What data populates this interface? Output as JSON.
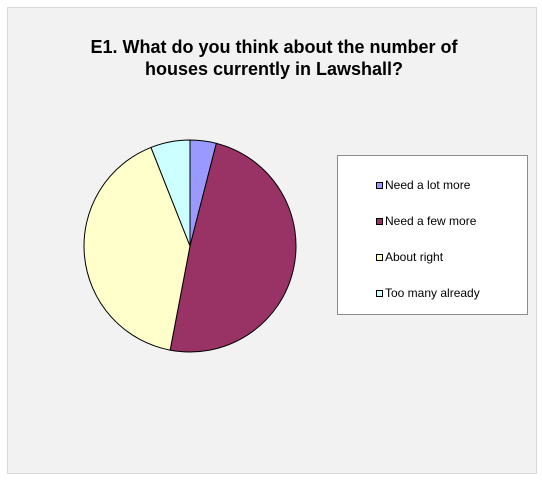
{
  "chart_data": {
    "type": "pie",
    "title": "E1. What do you think about the number of\nhouses currently in Lawshall?",
    "legend_position": "right",
    "slices": [
      {
        "label": "Need a lot more",
        "value": 4,
        "color": "#9999ff"
      },
      {
        "label": "Need a few more",
        "value": 49,
        "color": "#993366"
      },
      {
        "label": "About right",
        "value": 41,
        "color": "#ffffcc"
      },
      {
        "label": "Too many already",
        "value": 6,
        "color": "#ccffff"
      }
    ]
  }
}
